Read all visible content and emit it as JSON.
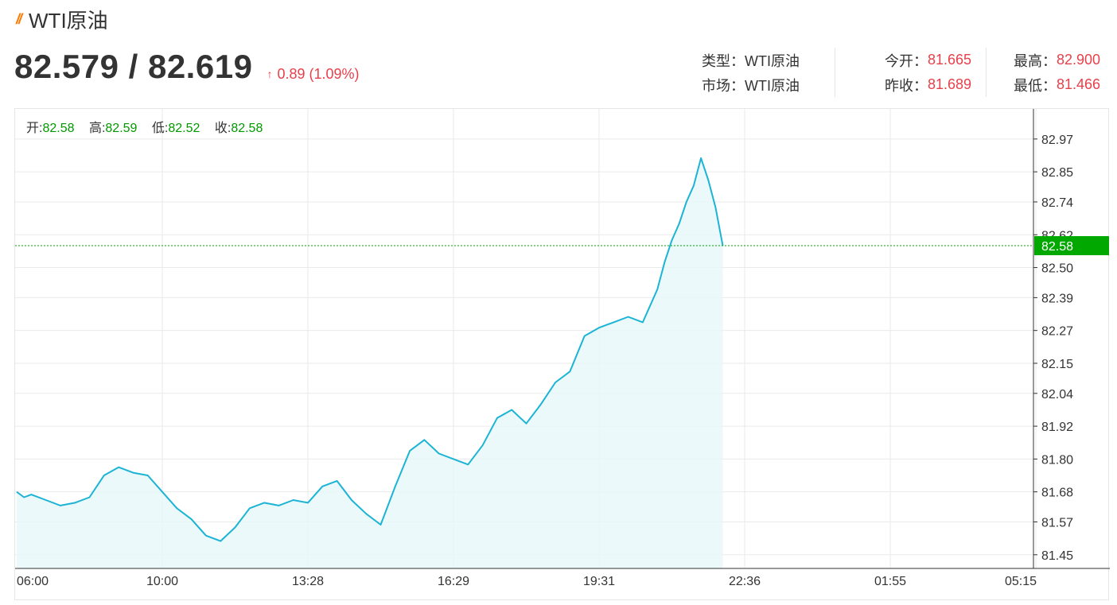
{
  "header": {
    "title": "WTI原油",
    "price": "82.579 / 82.619",
    "change": "0.89 (1.09%)",
    "up_arrow": "↑"
  },
  "stats": {
    "type_label": "类型：",
    "type_value": "WTI原油",
    "market_label": "市场：",
    "market_value": "WTI原油",
    "open_label": "今开：",
    "open_value": "81.665",
    "prev_close_label": "昨收：",
    "prev_close_value": "81.689",
    "high_label": "最高：",
    "high_value": "82.900",
    "low_label": "最低：",
    "low_value": "81.466"
  },
  "ohlc": {
    "open_label": "开:",
    "open": "82.58",
    "high_label": "高:",
    "high": "82.59",
    "low_label": "低:",
    "low": "82.52",
    "close_label": "收:",
    "close": "82.58"
  },
  "colors": {
    "line": "#1cb4d4",
    "fill": "#e6f7fa",
    "up": "#e8404a",
    "current_price": "#00a800",
    "title_mark": "#ff7a00"
  },
  "chart_data": {
    "type": "line",
    "y_ticks": [
      82.97,
      82.85,
      82.74,
      82.62,
      82.5,
      82.39,
      82.27,
      82.15,
      82.04,
      81.92,
      81.8,
      81.68,
      81.57,
      81.45
    ],
    "x_ticks": [
      "06:00",
      "10:00",
      "13:28",
      "16:29",
      "19:31",
      "22:36",
      "01:55",
      "05:15"
    ],
    "ylim": [
      81.4,
      83.08
    ],
    "current_price": 82.58,
    "current_price_label": "82.58",
    "series": [
      {
        "x": [
          0,
          0.05,
          0.1,
          0.2,
          0.3,
          0.4,
          0.5,
          0.6,
          0.7,
          0.8,
          0.9,
          1.0,
          1.1,
          1.2,
          1.3,
          1.4,
          1.5,
          1.6,
          1.7,
          1.8,
          1.9,
          2.0,
          2.1,
          2.2,
          2.3,
          2.4,
          2.5,
          2.6,
          2.7,
          2.8,
          2.9,
          3.0,
          3.1,
          3.2,
          3.3,
          3.4,
          3.5,
          3.6,
          3.7,
          3.8,
          3.9,
          4.0,
          4.1,
          4.2,
          4.3,
          4.4,
          4.45,
          4.5,
          4.55,
          4.6,
          4.65,
          4.7,
          4.75,
          4.8,
          4.85
        ],
        "y": [
          81.68,
          81.66,
          81.67,
          81.65,
          81.63,
          81.64,
          81.66,
          81.74,
          81.77,
          81.75,
          81.74,
          81.68,
          81.62,
          81.58,
          81.52,
          81.5,
          81.55,
          81.62,
          81.64,
          81.63,
          81.65,
          81.64,
          81.7,
          81.72,
          81.65,
          81.6,
          81.56,
          81.7,
          81.83,
          81.87,
          81.82,
          81.8,
          81.78,
          81.85,
          81.95,
          81.98,
          81.93,
          82.0,
          82.08,
          82.12,
          82.25,
          82.28,
          82.3,
          82.32,
          82.3,
          82.42,
          82.52,
          82.6,
          82.66,
          82.74,
          82.8,
          82.9,
          82.82,
          82.72,
          82.58
        ]
      }
    ]
  }
}
